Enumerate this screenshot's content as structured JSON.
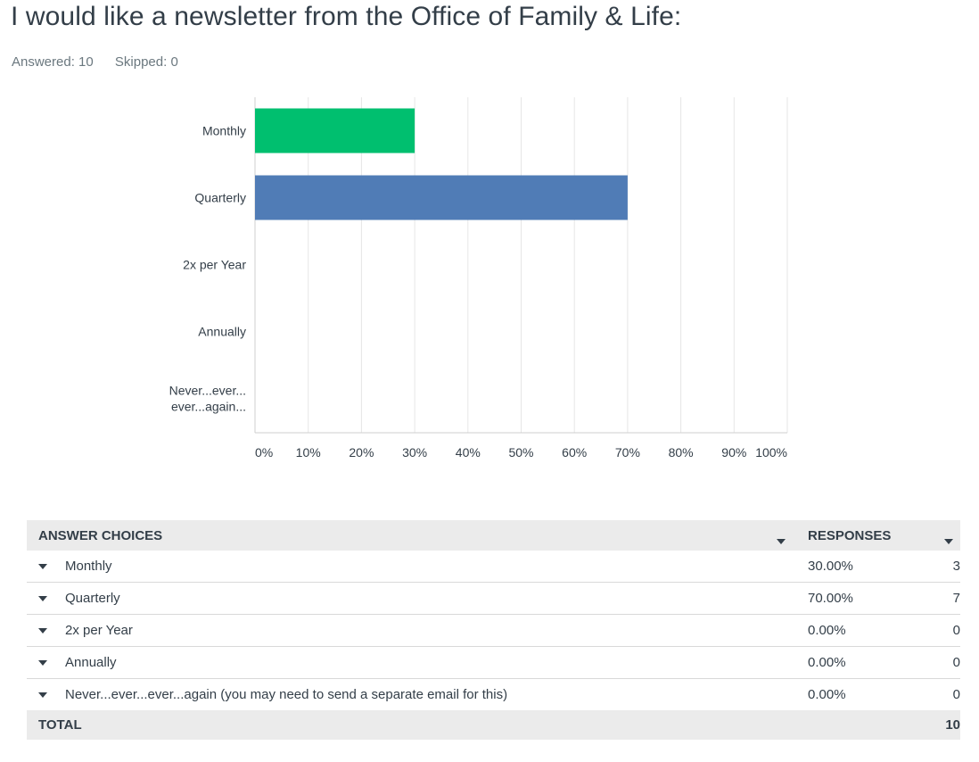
{
  "question": {
    "title": "I would like a newsletter from the Office of Family & Life:",
    "answered": "Answered: 10",
    "skipped": "Skipped: 0"
  },
  "chart_data": {
    "type": "bar",
    "orientation": "horizontal",
    "categories": [
      [
        "Monthly"
      ],
      [
        "Quarterly"
      ],
      [
        "2x per Year"
      ],
      [
        "Annually"
      ],
      [
        "Never...ever...",
        "ever...again..."
      ]
    ],
    "values": [
      30,
      70,
      0,
      0,
      0
    ],
    "colors": [
      "#00bf6f",
      "#507cb6",
      "#6bc8cd",
      "#f9be00",
      "#f05b24"
    ],
    "xlim": [
      0,
      100
    ],
    "xticks": [
      "0%",
      "10%",
      "20%",
      "30%",
      "40%",
      "50%",
      "60%",
      "70%",
      "80%",
      "90%",
      "100%"
    ],
    "grid": true
  },
  "table": {
    "header_choices": "ANSWER CHOICES",
    "header_responses": "RESPONSES",
    "rows": [
      {
        "label": "Monthly",
        "pct": "30.00%",
        "count": "3"
      },
      {
        "label": "Quarterly",
        "pct": "70.00%",
        "count": "7"
      },
      {
        "label": "2x per Year",
        "pct": "0.00%",
        "count": "0"
      },
      {
        "label": "Annually",
        "pct": "0.00%",
        "count": "0"
      },
      {
        "label": "Never...ever...ever...again (you may need to send a separate email for this)",
        "pct": "0.00%",
        "count": "0"
      }
    ],
    "total_label": "TOTAL",
    "total_value": "10"
  }
}
